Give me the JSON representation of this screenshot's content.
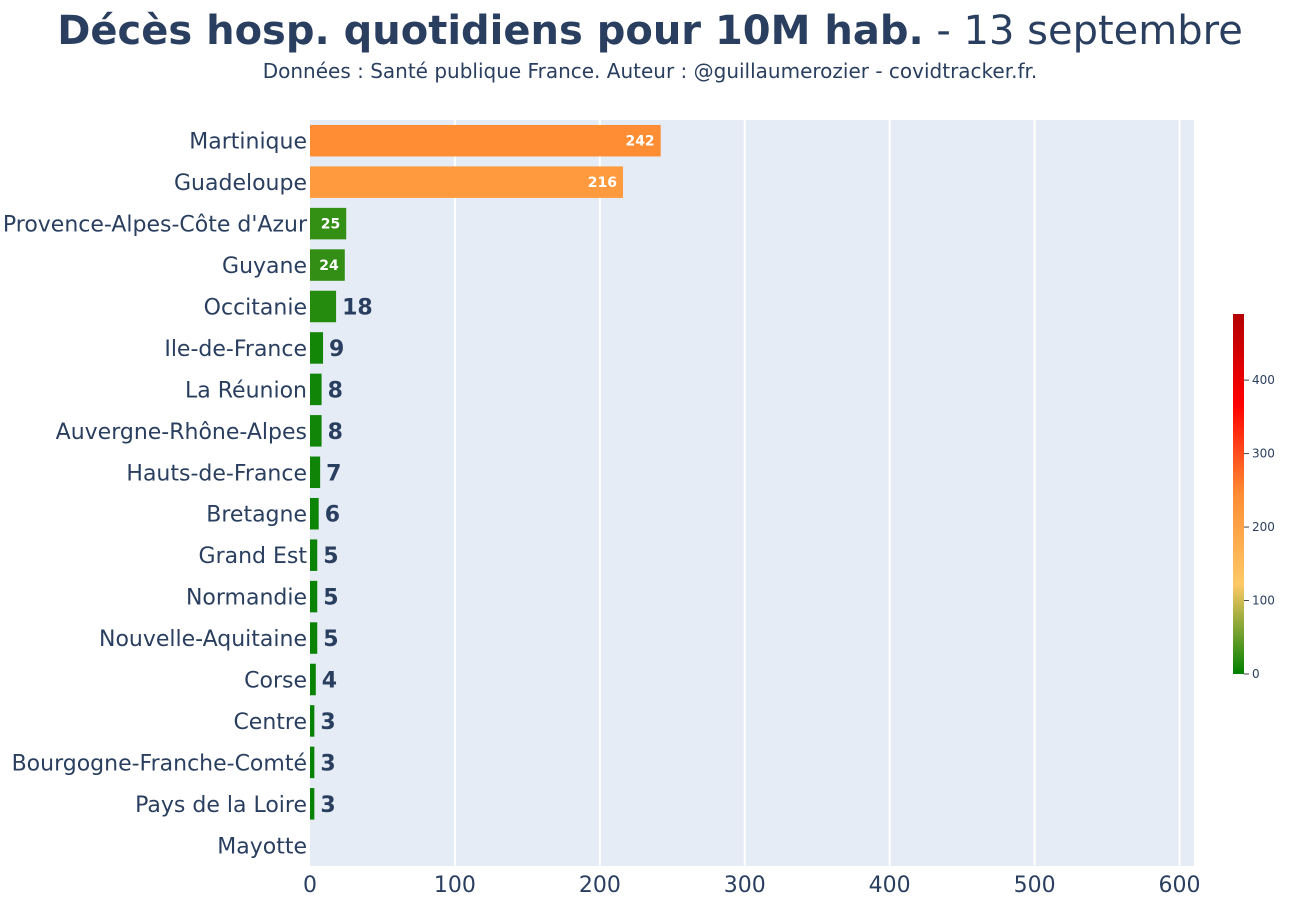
{
  "header": {
    "title_bold": "Décès hosp. quotidiens pour 10M hab.",
    "title_rest": " - 13 septembre",
    "subtitle": "Données : Santé publique France. Auteur : @guillaumerozier - covidtracker.fr."
  },
  "chart_data": {
    "type": "bar",
    "orientation": "horizontal",
    "categories": [
      "Martinique",
      "Guadeloupe",
      "Provence-Alpes-Côte d'Azur",
      "Guyane",
      "Occitanie",
      "Ile-de-France",
      "La Réunion",
      "Auvergne-Rhône-Alpes",
      "Hauts-de-France",
      "Bretagne",
      "Grand Est",
      "Normandie",
      "Nouvelle-Aquitaine",
      "Corse",
      "Centre",
      "Bourgogne-Franche-Comté",
      "Pays de la Loire",
      "Mayotte"
    ],
    "values": [
      242,
      216,
      25,
      24,
      18,
      9,
      8,
      8,
      7,
      6,
      5,
      5,
      5,
      4,
      3,
      3,
      3,
      0
    ],
    "labels": [
      "242",
      "216",
      "25",
      "24",
      "18",
      "9",
      "8",
      "8",
      "7",
      "6",
      "5",
      "5",
      "5",
      "4",
      "3",
      "3",
      "3",
      ""
    ],
    "xlim": [
      0,
      610
    ],
    "xticks": [
      0,
      100,
      200,
      300,
      400,
      500,
      600
    ],
    "grid": true,
    "colorscale": {
      "range": [
        0,
        490
      ],
      "ticks": [
        0,
        100,
        200,
        300,
        400
      ],
      "stops": [
        "#008000",
        "#ffc966",
        "#ff8c33",
        "#ff0000",
        "#b30000"
      ]
    },
    "plot_background": "#e5ecf6"
  }
}
